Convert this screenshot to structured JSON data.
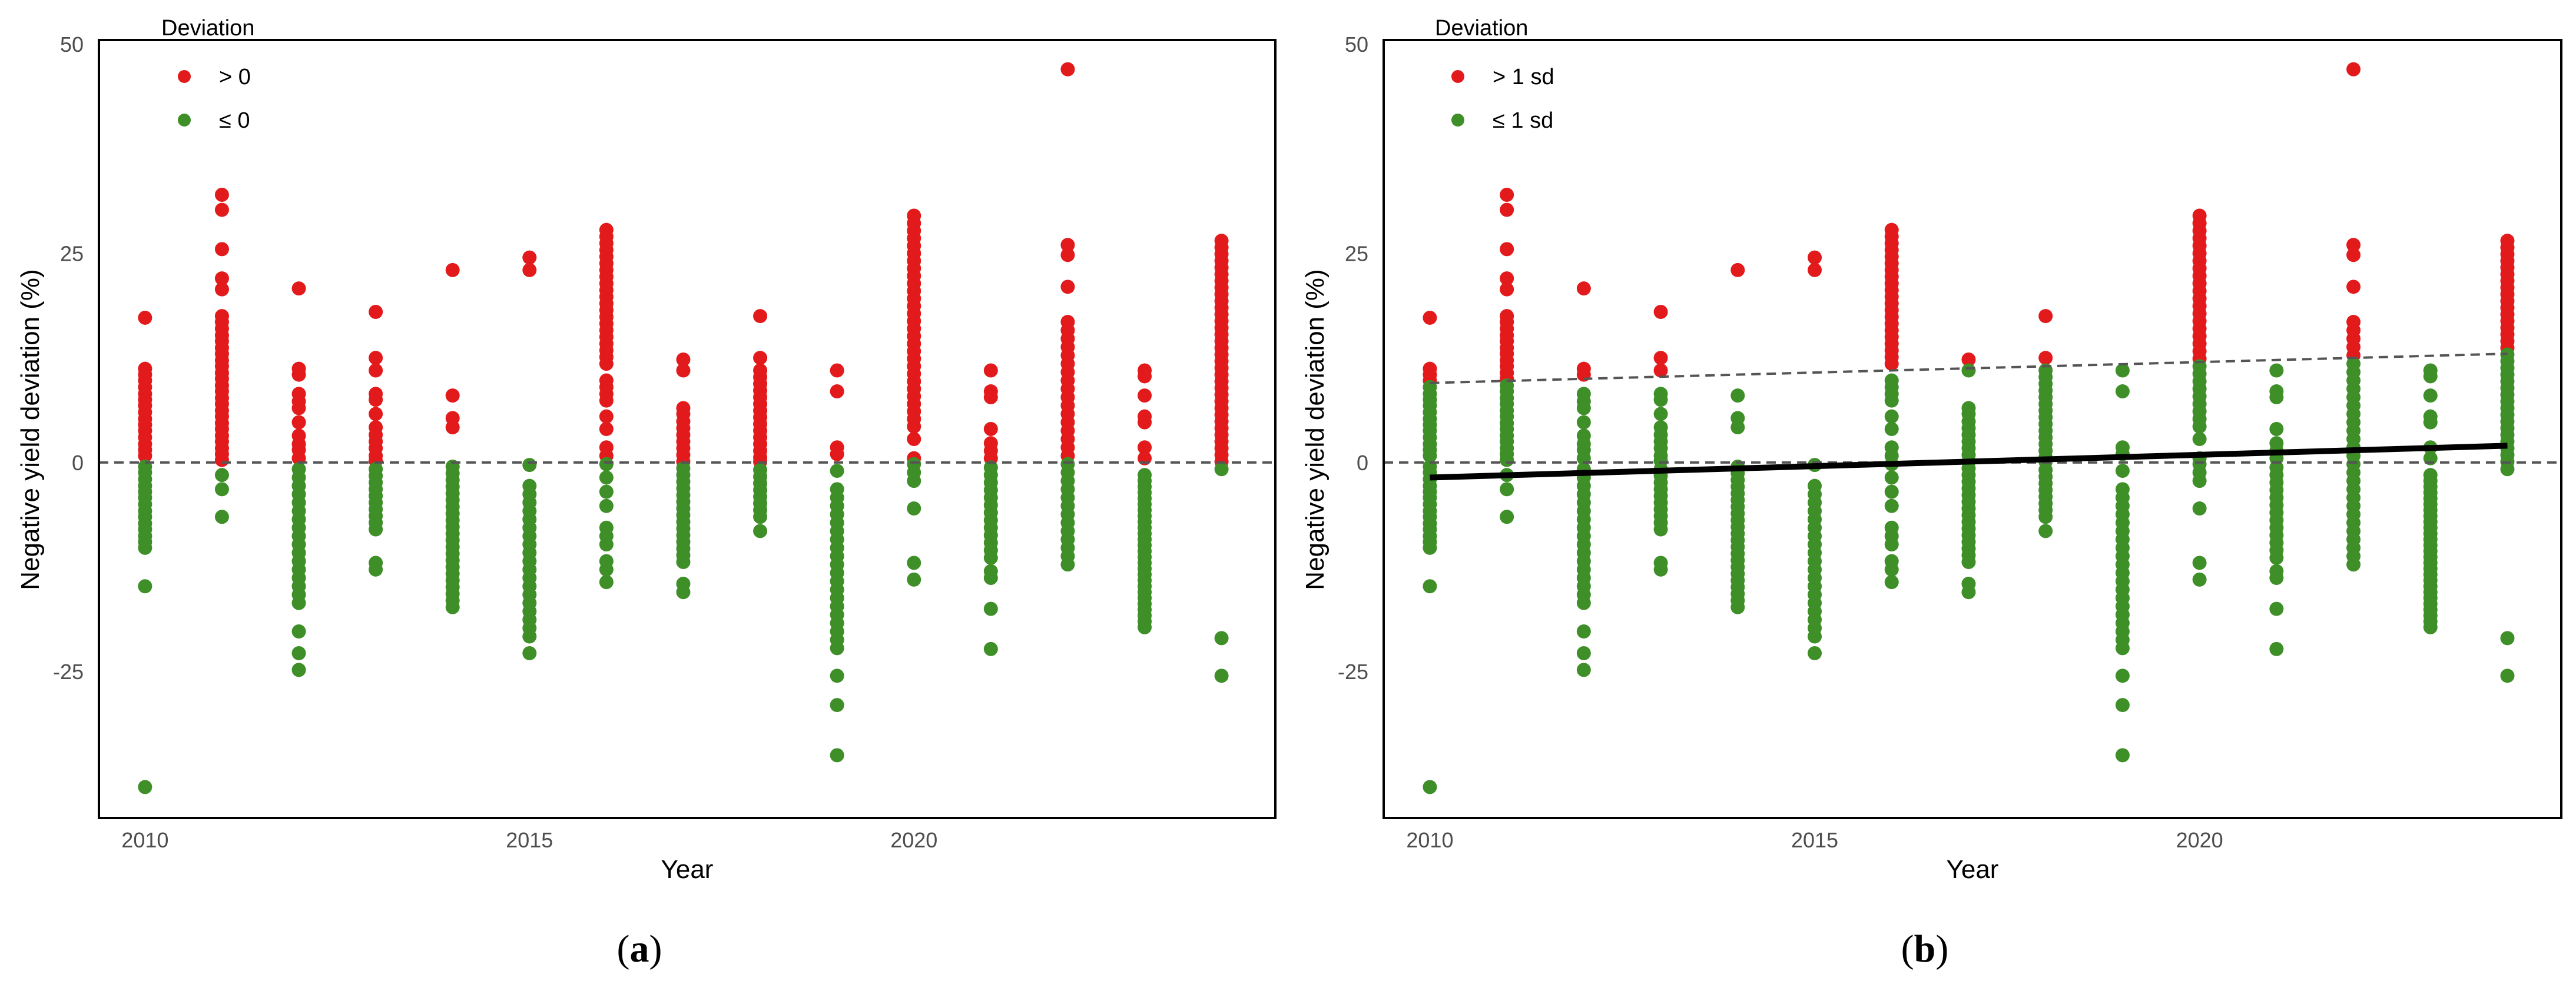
{
  "chart_data": [
    {
      "type": "scatter",
      "panel": "a",
      "caption_letter": "a",
      "xlabel": "Year",
      "ylabel": "Negative yield deviation (%)",
      "xlim": [
        2009.4,
        2024.7
      ],
      "ylim": [
        -42.5,
        50.5
      ],
      "xticks": [
        2010,
        2015,
        2020
      ],
      "yticks": [
        -25,
        0,
        25,
        50
      ],
      "reference_line": {
        "y": 0,
        "style": "dashed"
      },
      "threshold_line": null,
      "trend_line": null,
      "legend": {
        "title": "Deviation",
        "entries": [
          {
            "label": "> 0",
            "color": "#e31a1c"
          },
          {
            "label": "≤ 0",
            "color": "#3f8f29"
          }
        ]
      },
      "classification": {
        "rule": "y > 0",
        "high_color": "#e31a1c",
        "low_color": "#3f8f29"
      },
      "series": [
        {
          "x": 2010,
          "y": [
            17.3,
            11.2,
            10.5,
            9.8,
            9.0,
            8.2,
            7.5,
            6.8,
            6.0,
            5.2,
            4.5,
            3.8,
            3.0,
            2.2,
            1.5,
            0.8,
            -0.5,
            -1.2,
            -2.0,
            -2.8,
            -3.5,
            -4.2,
            -5.0,
            -5.8,
            -6.5,
            -7.3,
            -8.0,
            -8.8,
            -9.5,
            -10.2,
            -14.8,
            -38.8
          ]
        },
        {
          "x": 2011,
          "y": [
            32.0,
            30.2,
            25.5,
            22.0,
            20.7,
            17.5,
            16.8,
            16.0,
            15.2,
            14.5,
            13.7,
            13.0,
            12.2,
            11.5,
            10.7,
            10.0,
            9.2,
            8.5,
            7.7,
            7.0,
            6.2,
            5.5,
            4.7,
            4.0,
            3.2,
            2.5,
            1.7,
            1.0,
            0.3,
            -1.5,
            -3.2,
            -6.5
          ]
        },
        {
          "x": 2012,
          "y": [
            20.8,
            11.2,
            10.5,
            8.2,
            7.3,
            6.5,
            4.8,
            3.2,
            2.2,
            1.5,
            0.5,
            -0.8,
            -1.8,
            -2.8,
            -3.8,
            -4.8,
            -5.8,
            -6.8,
            -7.8,
            -8.8,
            -9.8,
            -10.8,
            -11.8,
            -12.8,
            -13.8,
            -14.8,
            -15.8,
            -16.8,
            -20.2,
            -22.8,
            -24.8
          ]
        },
        {
          "x": 2013,
          "y": [
            18.0,
            12.5,
            11.0,
            8.2,
            7.5,
            5.8,
            4.2,
            3.3,
            2.5,
            1.7,
            0.8,
            0.2,
            -0.8,
            -1.6,
            -2.4,
            -3.2,
            -4.0,
            -4.8,
            -5.6,
            -6.4,
            -7.2,
            -8.0,
            -12.0,
            -12.8
          ]
        },
        {
          "x": 2014,
          "y": [
            23.0,
            8.0,
            5.3,
            4.2,
            -0.5,
            -1.3,
            -2.1,
            -2.9,
            -3.7,
            -4.5,
            -5.3,
            -6.1,
            -6.9,
            -7.7,
            -8.5,
            -9.3,
            -10.1,
            -10.9,
            -11.7,
            -12.5,
            -13.3,
            -14.1,
            -14.9,
            -15.7,
            -16.5,
            -17.3
          ]
        },
        {
          "x": 2015,
          "y": [
            24.5,
            23.0,
            -0.3,
            -2.8,
            -3.8,
            -4.8,
            -5.8,
            -6.8,
            -7.8,
            -8.8,
            -9.8,
            -10.8,
            -11.8,
            -12.8,
            -13.8,
            -14.8,
            -15.8,
            -16.8,
            -17.8,
            -18.8,
            -19.8,
            -20.8,
            -22.8
          ]
        },
        {
          "x": 2016,
          "y": [
            27.8,
            27.0,
            26.2,
            25.4,
            24.6,
            23.8,
            23.0,
            22.2,
            21.4,
            20.6,
            19.8,
            19.0,
            18.2,
            17.4,
            16.6,
            15.8,
            15.0,
            14.2,
            13.4,
            12.6,
            11.8,
            9.8,
            9.0,
            8.2,
            7.4,
            5.5,
            4.0,
            1.8,
            0.8,
            -0.2,
            -1.8,
            -3.5,
            -5.2,
            -7.8,
            -8.8,
            -9.8,
            -11.8,
            -12.8,
            -14.3
          ]
        },
        {
          "x": 2017,
          "y": [
            12.3,
            11.0,
            6.5,
            5.8,
            4.9,
            4.1,
            3.3,
            2.5,
            1.7,
            0.9,
            0.1,
            -0.7,
            -1.5,
            -2.3,
            -3.1,
            -3.9,
            -4.7,
            -5.5,
            -6.3,
            -7.1,
            -7.9,
            -8.7,
            -9.5,
            -10.3,
            -11.1,
            -11.9,
            -14.5,
            -15.5
          ]
        },
        {
          "x": 2018,
          "y": [
            17.5,
            12.5,
            11.0,
            10.2,
            9.4,
            8.6,
            7.8,
            7.0,
            6.2,
            5.4,
            4.6,
            3.8,
            3.0,
            2.2,
            1.4,
            0.6,
            0.1,
            -0.9,
            -1.7,
            -2.5,
            -3.3,
            -4.1,
            -4.9,
            -5.7,
            -6.5,
            -8.2
          ]
        },
        {
          "x": 2019,
          "y": [
            11.0,
            8.5,
            1.8,
            1.0,
            -1.0,
            -3.2,
            -4.2,
            -5.2,
            -6.2,
            -7.2,
            -8.2,
            -9.2,
            -10.2,
            -11.2,
            -12.2,
            -13.2,
            -14.2,
            -15.2,
            -16.2,
            -17.2,
            -18.2,
            -19.2,
            -20.2,
            -21.2,
            -22.2,
            -25.5,
            -29.0,
            -35.0
          ]
        },
        {
          "x": 2020,
          "y": [
            29.5,
            28.6,
            27.7,
            26.8,
            25.9,
            25.0,
            24.1,
            23.2,
            22.3,
            21.4,
            20.5,
            19.6,
            18.7,
            17.8,
            16.9,
            16.0,
            15.1,
            14.2,
            13.3,
            12.4,
            11.5,
            10.6,
            9.7,
            8.8,
            7.9,
            7.0,
            6.1,
            5.2,
            4.3,
            2.8,
            0.5,
            -0.2,
            -1.2,
            -2.2,
            -5.5,
            -12.0,
            -14.0
          ]
        },
        {
          "x": 2021,
          "y": [
            11.0,
            8.5,
            7.8,
            4.0,
            2.3,
            1.4,
            0.5,
            -0.6,
            -1.5,
            -2.4,
            -3.3,
            -4.2,
            -5.1,
            -6.0,
            -6.9,
            -7.8,
            -8.7,
            -9.6,
            -10.5,
            -11.4,
            -13.0,
            -13.8,
            -17.5,
            -22.3
          ]
        },
        {
          "x": 2022,
          "y": [
            47.0,
            26.0,
            24.8,
            21.0,
            16.8,
            15.8,
            14.8,
            13.8,
            12.8,
            11.8,
            10.8,
            9.8,
            8.8,
            7.8,
            6.8,
            5.8,
            4.8,
            3.8,
            2.8,
            1.8,
            0.8,
            -0.2,
            -1.2,
            -2.2,
            -3.2,
            -4.2,
            -5.2,
            -6.2,
            -7.2,
            -8.2,
            -9.2,
            -10.2,
            -11.2,
            -12.2
          ]
        },
        {
          "x": 2023,
          "y": [
            11.0,
            10.3,
            8.0,
            5.5,
            4.8,
            1.8,
            0.5,
            -1.5,
            -2.2,
            -2.9,
            -3.6,
            -4.3,
            -5.0,
            -5.7,
            -6.4,
            -7.1,
            -7.8,
            -8.5,
            -9.2,
            -9.9,
            -10.6,
            -11.3,
            -12.0,
            -12.7,
            -13.4,
            -14.1,
            -14.8,
            -15.5,
            -16.2,
            -16.9,
            -17.6,
            -18.3,
            -19.0,
            -19.7
          ]
        },
        {
          "x": 2024,
          "y": [
            26.5,
            25.7,
            24.9,
            24.1,
            23.3,
            22.5,
            21.7,
            20.9,
            20.1,
            19.3,
            18.5,
            17.7,
            16.9,
            16.1,
            15.3,
            14.5,
            13.7,
            12.9,
            12.1,
            11.3,
            10.5,
            9.7,
            8.9,
            8.1,
            7.3,
            6.5,
            5.7,
            4.9,
            4.1,
            3.3,
            2.5,
            1.7,
            0.9,
            0.1,
            -0.8,
            -21.0,
            -25.5
          ]
        }
      ]
    },
    {
      "type": "scatter",
      "panel": "b",
      "caption_letter": "b",
      "xlabel": "Year",
      "ylabel": "Negative yield deviation (%)",
      "xlim": [
        2009.4,
        2024.7
      ],
      "ylim": [
        -42.5,
        50.5
      ],
      "xticks": [
        2010,
        2015,
        2020
      ],
      "yticks": [
        -25,
        0,
        25,
        50
      ],
      "reference_line": {
        "y": 0,
        "style": "dashed"
      },
      "threshold_line": {
        "x": [
          2010,
          2024
        ],
        "y": [
          9.5,
          13.0
        ],
        "style": "dashed",
        "label": "1 sd threshold"
      },
      "trend_line": {
        "x": [
          2010,
          2024
        ],
        "y": [
          -1.8,
          2.0
        ],
        "style": "solid"
      },
      "legend": {
        "title": "Deviation",
        "entries": [
          {
            "label": "> 1 sd",
            "color": "#e31a1c"
          },
          {
            "label": "≤ 1 sd",
            "color": "#3f8f29"
          }
        ]
      },
      "classification": {
        "rule": "y > threshold",
        "high_color": "#e31a1c",
        "low_color": "#3f8f29"
      },
      "series_from_panel": "a"
    }
  ]
}
